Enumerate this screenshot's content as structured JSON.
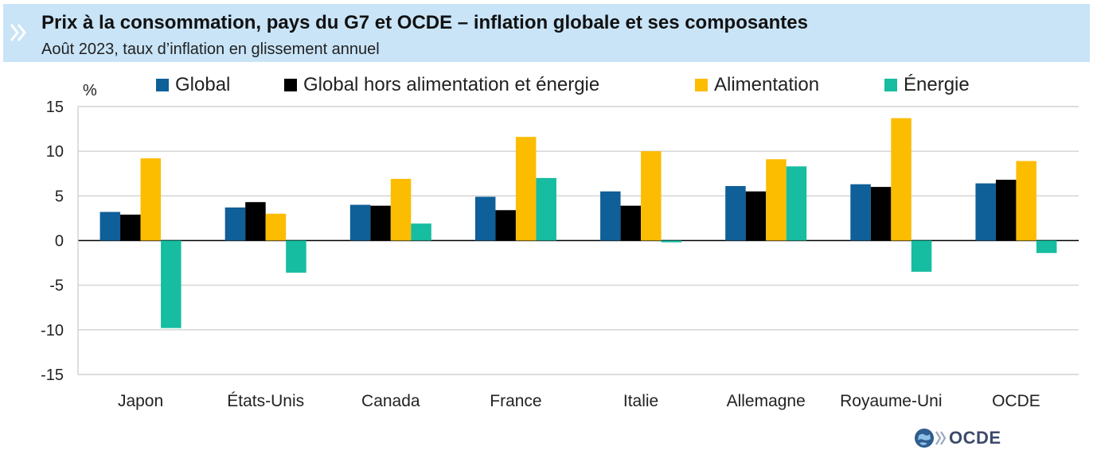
{
  "header": {
    "title": "Prix à la consommation, pays du G7 et OCDE – inflation globale et ses composantes",
    "subtitle": "Août 2023, taux d’inflation en glissement annuel"
  },
  "logo": {
    "text": "OCDE",
    "icon": "oecd-globe-icon"
  },
  "chart_data": {
    "type": "bar",
    "ylabel": "%",
    "ylim": [
      -15,
      15
    ],
    "yticks": [
      15,
      10,
      5,
      0,
      -5,
      -10,
      -15
    ],
    "grid": true,
    "legend_position": "top",
    "categories": [
      "Japon",
      "États-Unis",
      "Canada",
      "France",
      "Italie",
      "Allemagne",
      "Royaume-Uni",
      "OCDE"
    ],
    "series": [
      {
        "name": "Global",
        "color": "#0f5f99",
        "values": [
          3.2,
          3.7,
          4.0,
          4.9,
          5.5,
          6.1,
          6.3,
          6.4
        ]
      },
      {
        "name": "Global hors alimentation et énergie",
        "color": "#000000",
        "values": [
          2.9,
          4.3,
          3.9,
          3.4,
          3.9,
          5.5,
          6.0,
          6.8
        ]
      },
      {
        "name": "Alimentation",
        "color": "#fcbc00",
        "values": [
          9.2,
          3.0,
          6.9,
          11.6,
          10.0,
          9.1,
          13.7,
          8.9
        ]
      },
      {
        "name": "Énergie",
        "color": "#16bda0",
        "values": [
          -9.8,
          -3.6,
          1.9,
          7.0,
          -0.2,
          8.3,
          -3.5,
          -1.4
        ]
      }
    ]
  }
}
